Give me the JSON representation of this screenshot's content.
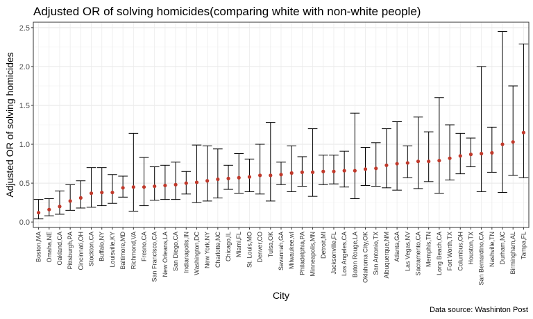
{
  "chart_data": {
    "type": "errorbar-point",
    "title": "Adjusted OR of solving homicides(comparing white with non-white people)",
    "xlabel": "City",
    "ylabel": "Adjusted OR of solving homicides",
    "caption": "Data source: Washinton Post",
    "ylim": [
      -0.07,
      2.57
    ],
    "yticks": [
      0.0,
      0.5,
      1.0,
      1.5,
      2.0,
      2.5
    ],
    "ytick_labels": [
      "0.0",
      "0.5",
      "1.0",
      "1.5",
      "2.0",
      "2.5"
    ],
    "grid": true,
    "point_color": "#c0392b",
    "categories": [
      "Boston,MA",
      "Omaha,NE",
      "Oakland,CA",
      "Pittsburgh,PA",
      "Cincinnati,OH",
      "Stockton,CA",
      "Buffalo,NY",
      "Louisville,KY",
      "Baltimore,MD",
      "Richmond,VA",
      "Fresno,CA",
      "San Francisco,CA",
      "New Orleans,LA",
      "San Diego,CA",
      "Indianapolis,IN",
      "Washington,DC",
      "New York,NY",
      "Charlotte,NC",
      "Chicago,IL",
      "Miami,FL",
      "St. Louis,MO",
      "Denver,CO",
      "Tulsa,OK",
      "Savannah,GA",
      "Milwaukee,wI",
      "Philadelphia,PA",
      "Minneapolis,MN",
      "Detroit,MI",
      "Jacksonville,FL",
      "Los Angeles,CA",
      "Baton Rouge,LA",
      "Oklahoma City,OK",
      "San Antonio,TX",
      "Albuquerque,NM",
      "Atlanta,GA",
      "Las Vegas,NV",
      "Sacramento,CA",
      "Memphis,TN",
      "Long Beach,CA",
      "Fort Worth,TX",
      "Columbus,OH",
      "Houston,TX",
      "San Bernardino,CA",
      "Nashville,TN",
      "Durham,NC",
      "Birmingham,AL",
      "Tampa,FL"
    ],
    "estimate": [
      0.12,
      0.16,
      0.2,
      0.27,
      0.31,
      0.37,
      0.38,
      0.38,
      0.44,
      0.45,
      0.45,
      0.46,
      0.47,
      0.48,
      0.5,
      0.51,
      0.53,
      0.55,
      0.56,
      0.57,
      0.58,
      0.6,
      0.6,
      0.61,
      0.63,
      0.64,
      0.64,
      0.65,
      0.65,
      0.66,
      0.66,
      0.68,
      0.69,
      0.73,
      0.75,
      0.76,
      0.78,
      0.78,
      0.79,
      0.82,
      0.85,
      0.87,
      0.88,
      0.89,
      1.0,
      1.03,
      1.15
    ],
    "lower": [
      0.04,
      0.08,
      0.1,
      0.15,
      0.18,
      0.19,
      0.21,
      0.24,
      0.32,
      0.14,
      0.21,
      0.28,
      0.29,
      0.29,
      0.36,
      0.25,
      0.27,
      0.31,
      0.42,
      0.37,
      0.39,
      0.36,
      0.27,
      0.48,
      0.39,
      0.46,
      0.33,
      0.48,
      0.49,
      0.45,
      0.3,
      0.47,
      0.46,
      0.44,
      0.41,
      0.57,
      0.43,
      0.52,
      0.37,
      0.54,
      0.62,
      0.71,
      0.39,
      0.64,
      0.38,
      0.6,
      0.57
    ],
    "upper": [
      0.29,
      0.3,
      0.4,
      0.48,
      0.53,
      0.7,
      0.7,
      0.61,
      0.59,
      1.14,
      0.83,
      0.71,
      0.73,
      0.77,
      0.65,
      0.99,
      0.98,
      0.94,
      0.73,
      0.88,
      0.81,
      1.0,
      1.28,
      0.77,
      0.98,
      0.84,
      1.2,
      0.86,
      0.86,
      0.91,
      1.4,
      0.96,
      1.02,
      1.2,
      1.29,
      0.98,
      1.35,
      1.16,
      1.6,
      1.25,
      1.14,
      1.08,
      2.0,
      1.22,
      2.45,
      1.75,
      2.29
    ]
  }
}
